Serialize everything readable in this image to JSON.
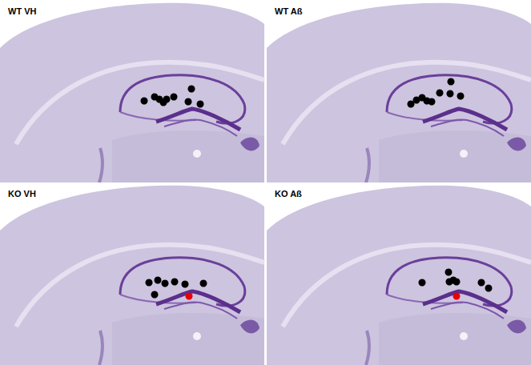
{
  "chart_data": [
    {
      "type": "scatter",
      "title": "WT VH",
      "marker": "circle",
      "tick_labels": false,
      "grid": false,
      "xlim": [
        0,
        330
      ],
      "ylim": [
        0,
        228
      ],
      "x": [
        180,
        193,
        199,
        204,
        208,
        217,
        239,
        235,
        250
      ],
      "y": [
        126,
        121,
        124,
        128,
        124,
        121,
        111,
        127,
        130
      ],
      "colors": [
        "#000000",
        "#000000",
        "#000000",
        "#000000",
        "#000000",
        "#000000",
        "#000000",
        "#000000",
        "#000000"
      ]
    },
    {
      "type": "scatter",
      "title": "WT Aß",
      "marker": "circle",
      "tick_labels": false,
      "grid": false,
      "xlim": [
        0,
        330
      ],
      "ylim": [
        0,
        228
      ],
      "x": [
        180,
        187,
        194,
        200,
        206,
        216,
        230,
        229,
        242
      ],
      "y": [
        130,
        125,
        122,
        126,
        127,
        116,
        102,
        117,
        120
      ],
      "colors": [
        "#000000",
        "#000000",
        "#000000",
        "#000000",
        "#000000",
        "#000000",
        "#000000",
        "#000000",
        "#000000"
      ]
    },
    {
      "type": "scatter",
      "title": "KO VH",
      "marker": "circle",
      "tick_labels": false,
      "grid": false,
      "xlim": [
        0,
        330
      ],
      "ylim": [
        0,
        228
      ],
      "x": [
        186,
        197,
        206,
        218,
        193,
        231,
        254,
        236
      ],
      "y": [
        125,
        122,
        126,
        124,
        140,
        127,
        126,
        142
      ],
      "colors": [
        "#000000",
        "#000000",
        "#000000",
        "#000000",
        "#000000",
        "#000000",
        "#000000",
        "#e8000b"
      ]
    },
    {
      "type": "scatter",
      "title": "KO Aß",
      "marker": "circle",
      "tick_labels": false,
      "grid": false,
      "xlim": [
        0,
        330
      ],
      "ylim": [
        0,
        228
      ],
      "x": [
        194,
        227,
        233,
        228,
        237,
        268,
        277,
        237
      ],
      "y": [
        125,
        112,
        122,
        124,
        124,
        125,
        132,
        142
      ],
      "colors": [
        "#000000",
        "#000000",
        "#000000",
        "#000000",
        "#000000",
        "#000000",
        "#000000",
        "#e8000b"
      ]
    }
  ]
}
